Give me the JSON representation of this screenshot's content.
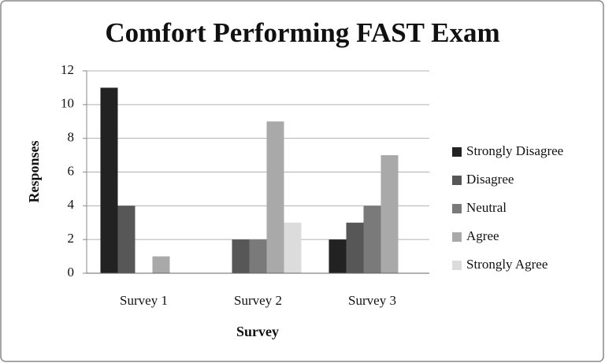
{
  "chart_data": {
    "type": "bar",
    "title": "Comfort Performing FAST Exam",
    "x_label": "Survey",
    "y_label": "Responses",
    "categories": [
      "Survey 1",
      "Survey 2",
      "Survey 3"
    ],
    "series": [
      {
        "name": "Strongly Disagree",
        "color": "#222222",
        "values": [
          11,
          0,
          2
        ]
      },
      {
        "name": "Disagree",
        "color": "#575757",
        "values": [
          4,
          2,
          3
        ]
      },
      {
        "name": "Neutral",
        "color": "#7a7a7a",
        "values": [
          0,
          2,
          4
        ]
      },
      {
        "name": "Agree",
        "color": "#a9a9a9",
        "values": [
          1,
          9,
          7
        ]
      },
      {
        "name": "Strongly Agree",
        "color": "#dcdcdc",
        "values": [
          0,
          3,
          0
        ]
      }
    ],
    "ylim": [
      0,
      12
    ],
    "yticks": [
      0,
      2,
      4,
      6,
      8,
      10,
      12
    ],
    "grid": true,
    "legend": "right"
  }
}
